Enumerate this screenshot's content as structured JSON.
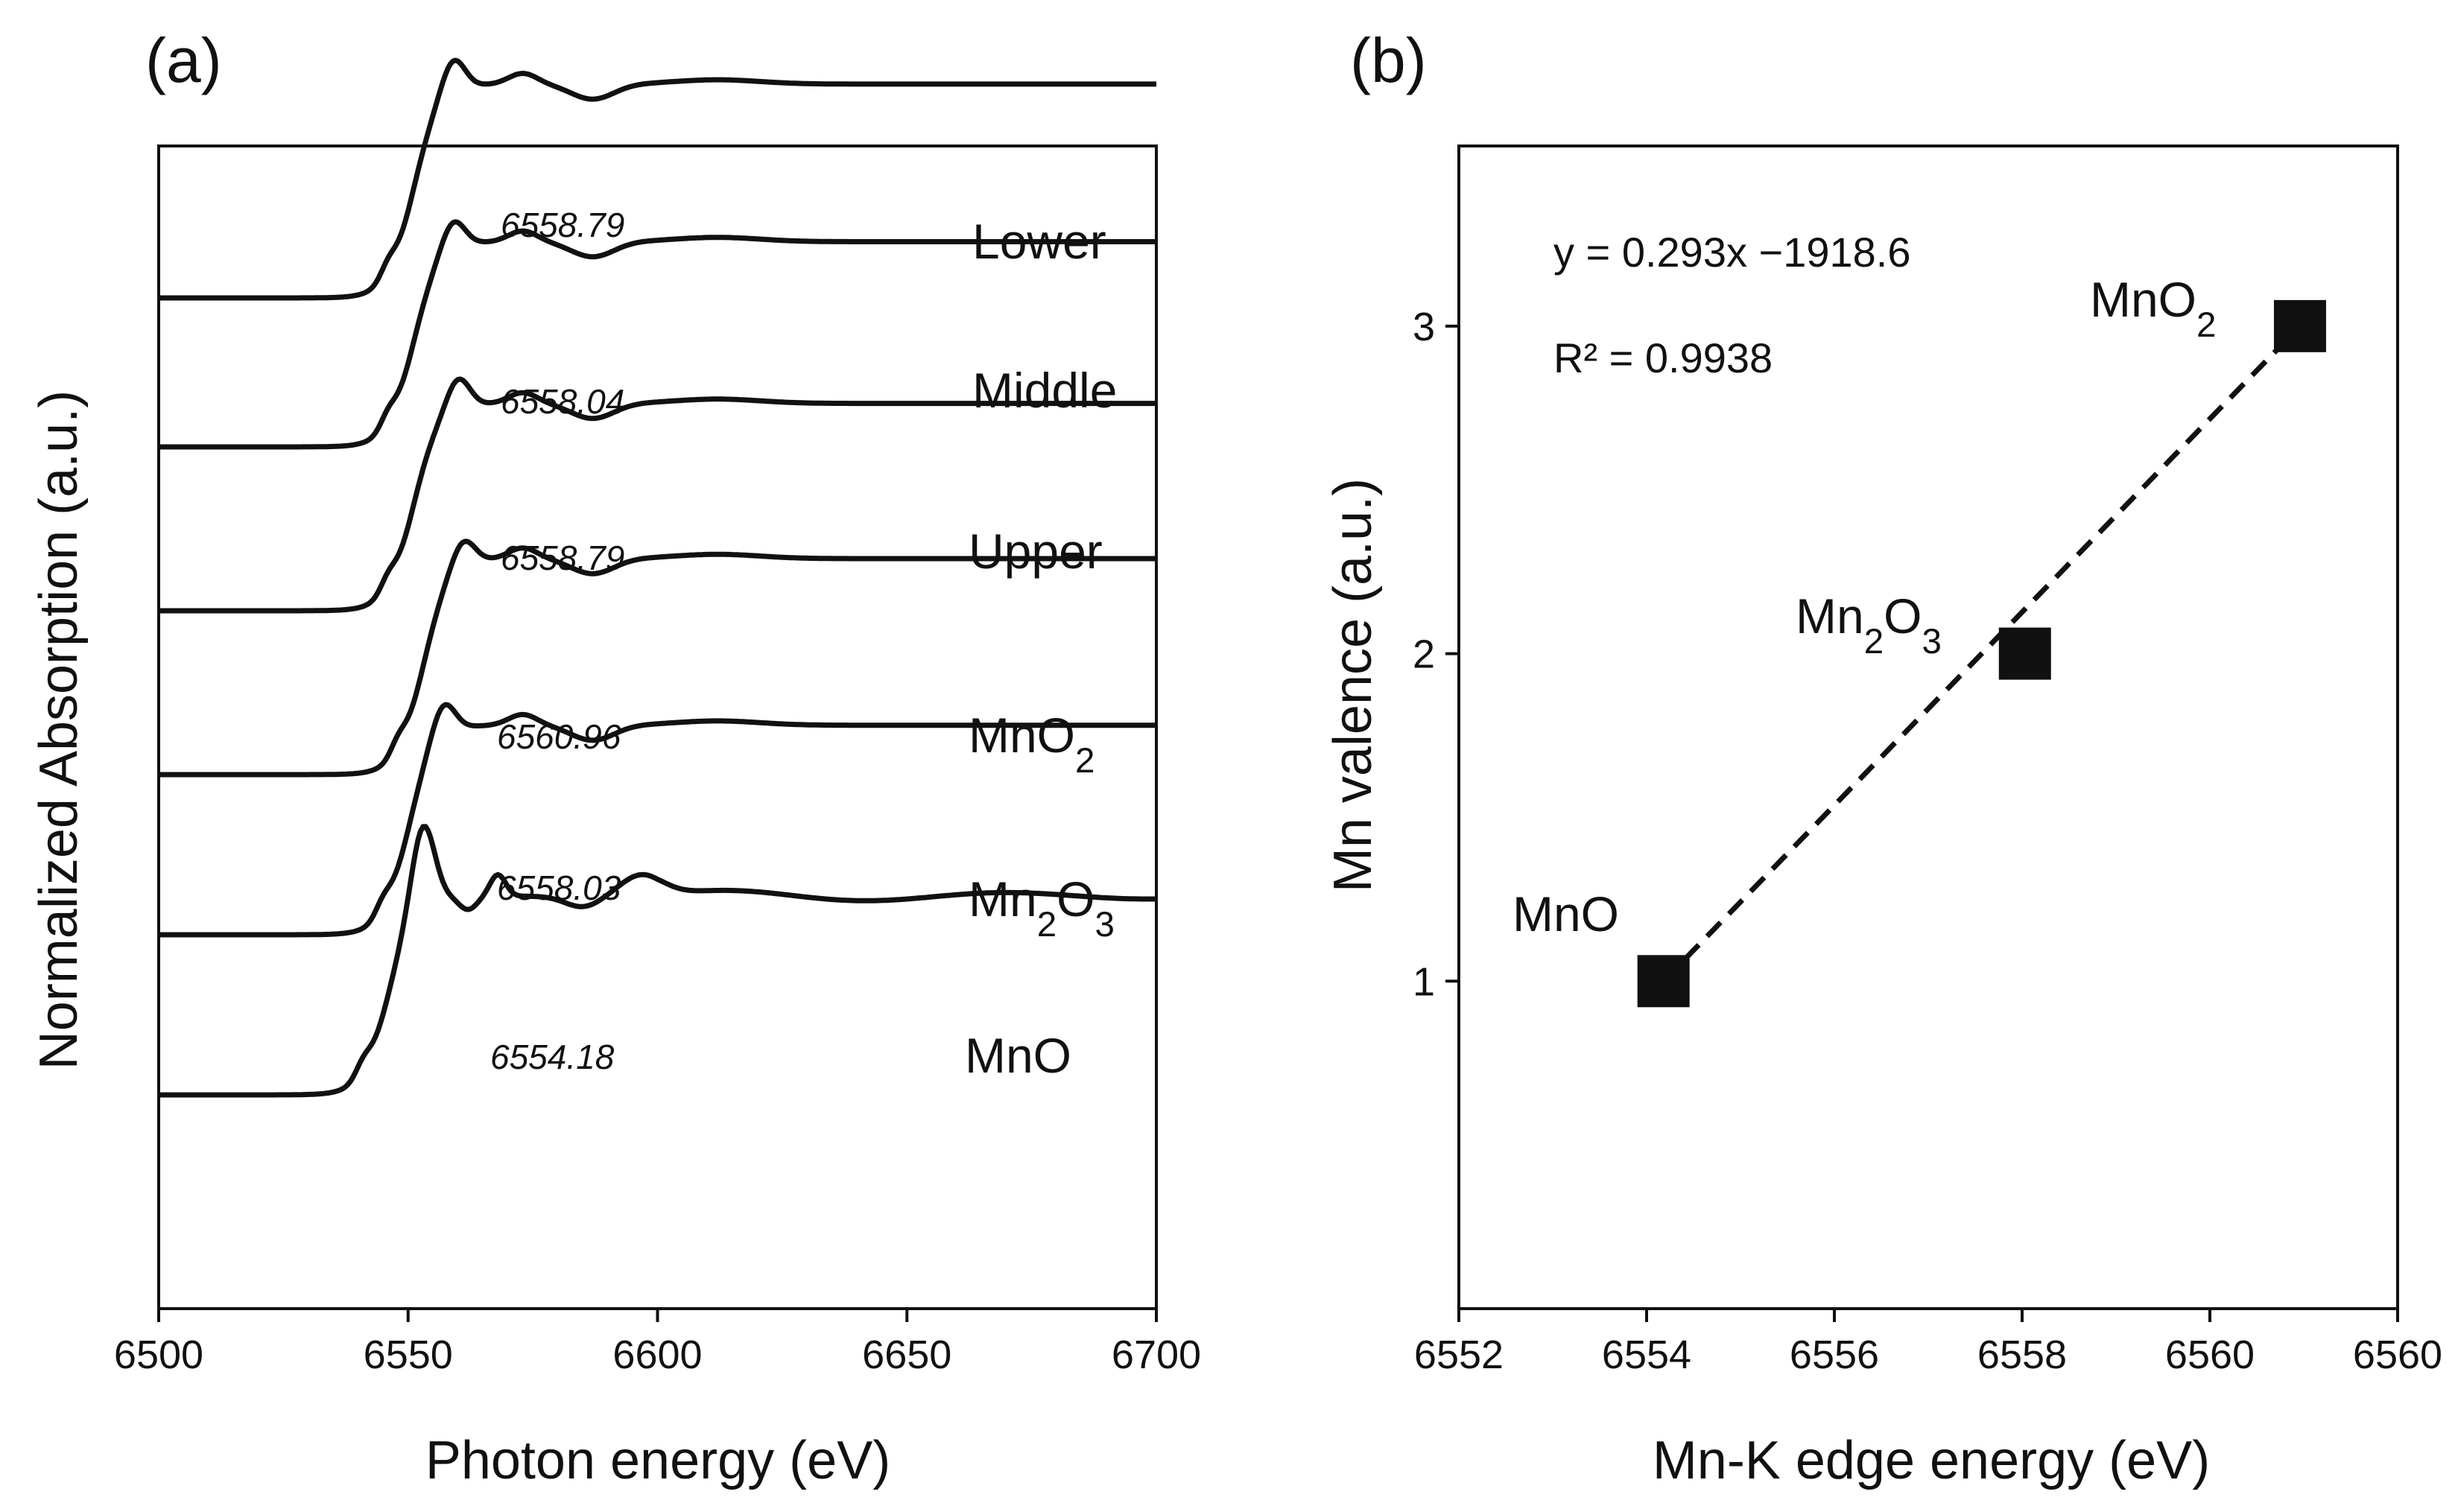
{
  "panels": {
    "a": {
      "tag": "(a)",
      "xlabel": "Photon energy (eV)",
      "ylabel": "Normalized Absorption (a.u.)"
    },
    "b": {
      "tag": "(b)",
      "xlabel": "Mn-K edge energy (eV)",
      "ylabel": "Mn valence (a.u.)",
      "fit_equation": "y = 0.293x −1918.6",
      "fit_r2": "R² = 0.9938"
    }
  },
  "chart_data": [
    {
      "type": "line",
      "panel": "a",
      "title": "",
      "xlabel": "Photon energy (eV)",
      "ylabel": "Normalized Absorption (a.u.)",
      "xlim": [
        6500,
        6700
      ],
      "xticks": [
        "6500",
        "6550",
        "6600",
        "6650",
        "6700"
      ],
      "yticks": [],
      "grid": false,
      "legend": "none",
      "series": [
        {
          "name": "Lower",
          "label": {
            "main": "Lower",
            "subs": []
          },
          "edge_energy": "6558.79",
          "baseline": 0.48,
          "edge": 6551,
          "edgeHeight": 0.99,
          "peak": 6559,
          "peakHeight": 1.14
        },
        {
          "name": "Middle",
          "label": {
            "main": "Middle",
            "subs": []
          },
          "edge_energy": "6558.04",
          "baseline": 0.43,
          "edge": 6551,
          "edgeHeight": 0.95,
          "peak": 6559,
          "peakHeight": 1.08
        },
        {
          "name": "Upper",
          "label": {
            "main": "Upper",
            "subs": []
          },
          "edge_energy": "6558.79",
          "baseline": 0.49,
          "edge": 6551,
          "edgeHeight": 0.96,
          "peak": 6560,
          "peakHeight": 1.1
        },
        {
          "name": "MnO2",
          "label": {
            "main": "MnO",
            "subs": [
              "2"
            ]
          },
          "edge_energy": "6560.96",
          "baseline": 0.64,
          "edge": 6553,
          "edgeHeight": 1.0,
          "peak": 6561,
          "peakHeight": 1.12
        },
        {
          "name": "Mn2O3",
          "label": {
            "main": "Mn",
            "subs": [
              "2",
              "O",
              "3"
            ]
          },
          "edge_energy": "6558.03",
          "baseline": 0.58,
          "edge": 6550,
          "edgeHeight": 0.97,
          "peak": 6557,
          "peakHeight": 1.12
        },
        {
          "name": "MnO",
          "label": {
            "main": "MnO",
            "subs": []
          },
          "edge_energy": "6554.18",
          "baseline": 0.58,
          "edge": 6546,
          "edgeHeight": 0.92,
          "peak": 6553,
          "peakHeight": 1.3
        }
      ]
    },
    {
      "type": "scatter",
      "panel": "b",
      "title": "",
      "xlabel": "Mn-K edge energy (eV)",
      "ylabel": "Mn valence (a.u.)",
      "xlim": [
        6552,
        6562
      ],
      "ylim": [
        0,
        3.55
      ],
      "xticks": [
        "6552",
        "6554",
        "6556",
        "6558",
        "6560",
        "6560"
      ],
      "yticks": [
        1,
        2,
        3
      ],
      "grid": false,
      "legend": "none",
      "points": [
        {
          "x": 6554.18,
          "y": 1,
          "label": {
            "main": "MnO",
            "subs": []
          }
        },
        {
          "x": 6558.03,
          "y": 2,
          "label": {
            "main": "Mn",
            "subs": [
              "2",
              "O",
              "3"
            ]
          }
        },
        {
          "x": 6560.96,
          "y": 3,
          "label": {
            "main": "MnO",
            "subs": [
              "2"
            ]
          }
        }
      ],
      "fit": {
        "slope": 0.293,
        "intercept": -1918.6,
        "r2": 0.9938,
        "style": "dashed"
      }
    }
  ]
}
